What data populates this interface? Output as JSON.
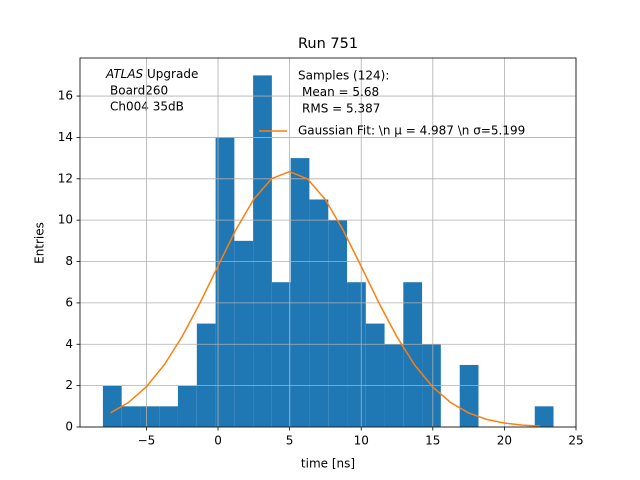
{
  "chart_data": {
    "type": "histogram",
    "title": "Run 751",
    "x_label": "time [ns]",
    "y_label": "Entries",
    "annotation": {
      "experiment": "ATLAS",
      "label": "Upgrade",
      "lines": [
        "Board260",
        "Ch004 35dB"
      ]
    },
    "bins": [
      -8.04,
      -6.73,
      -5.42,
      -4.11,
      -2.8,
      -1.48,
      -0.17,
      1.14,
      2.45,
      3.76,
      5.07,
      6.38,
      7.7,
      9.01,
      10.32,
      11.63,
      12.94,
      14.25,
      15.56,
      16.88,
      18.19,
      19.5,
      20.81,
      22.12,
      23.43
    ],
    "values": [
      2,
      1,
      1,
      1,
      2,
      5,
      14,
      9,
      17,
      7,
      13,
      11,
      10,
      7,
      5,
      4,
      7,
      4,
      0,
      3,
      0,
      0,
      0,
      1
    ],
    "name": [
      "Samples (124):",
      "Mean = 5.68",
      "RMS = 5.387"
    ],
    "color": "#1f77b4",
    "fit": {
      "name": "Gaussian Fit: \\n μ = 4.987 \\n σ=5.199",
      "color": "#ff7f0e",
      "x": [
        -7.5,
        -6.25,
        -5,
        -3.75,
        -2.5,
        -1.25,
        0,
        1.25,
        2.5,
        3.75,
        5,
        6.25,
        7.5,
        8.75,
        10,
        11.25,
        12.5,
        13.75,
        15,
        16.25,
        17.5,
        18.75,
        20,
        21.25,
        22.5
      ],
      "values": [
        0.69,
        1.19,
        1.95,
        3.01,
        4.38,
        6.01,
        7.79,
        9.54,
        11.02,
        12.01,
        12.35,
        11.99,
        10.99,
        9.5,
        7.76,
        5.98,
        4.35,
        2.98,
        1.93,
        1.18,
        0.68,
        0.37,
        0.19,
        0.09,
        0.04
      ]
    },
    "xlim": [
      -9.64,
      25
    ],
    "ylim": [
      0,
      17.84
    ],
    "xticks": [
      {
        "value": -5,
        "label": "−5"
      },
      0,
      5,
      10,
      15,
      20,
      25
    ],
    "yticks": [
      0,
      2,
      4,
      6,
      8,
      10,
      12,
      14,
      16
    ],
    "grid": true,
    "legend": "upper right"
  }
}
